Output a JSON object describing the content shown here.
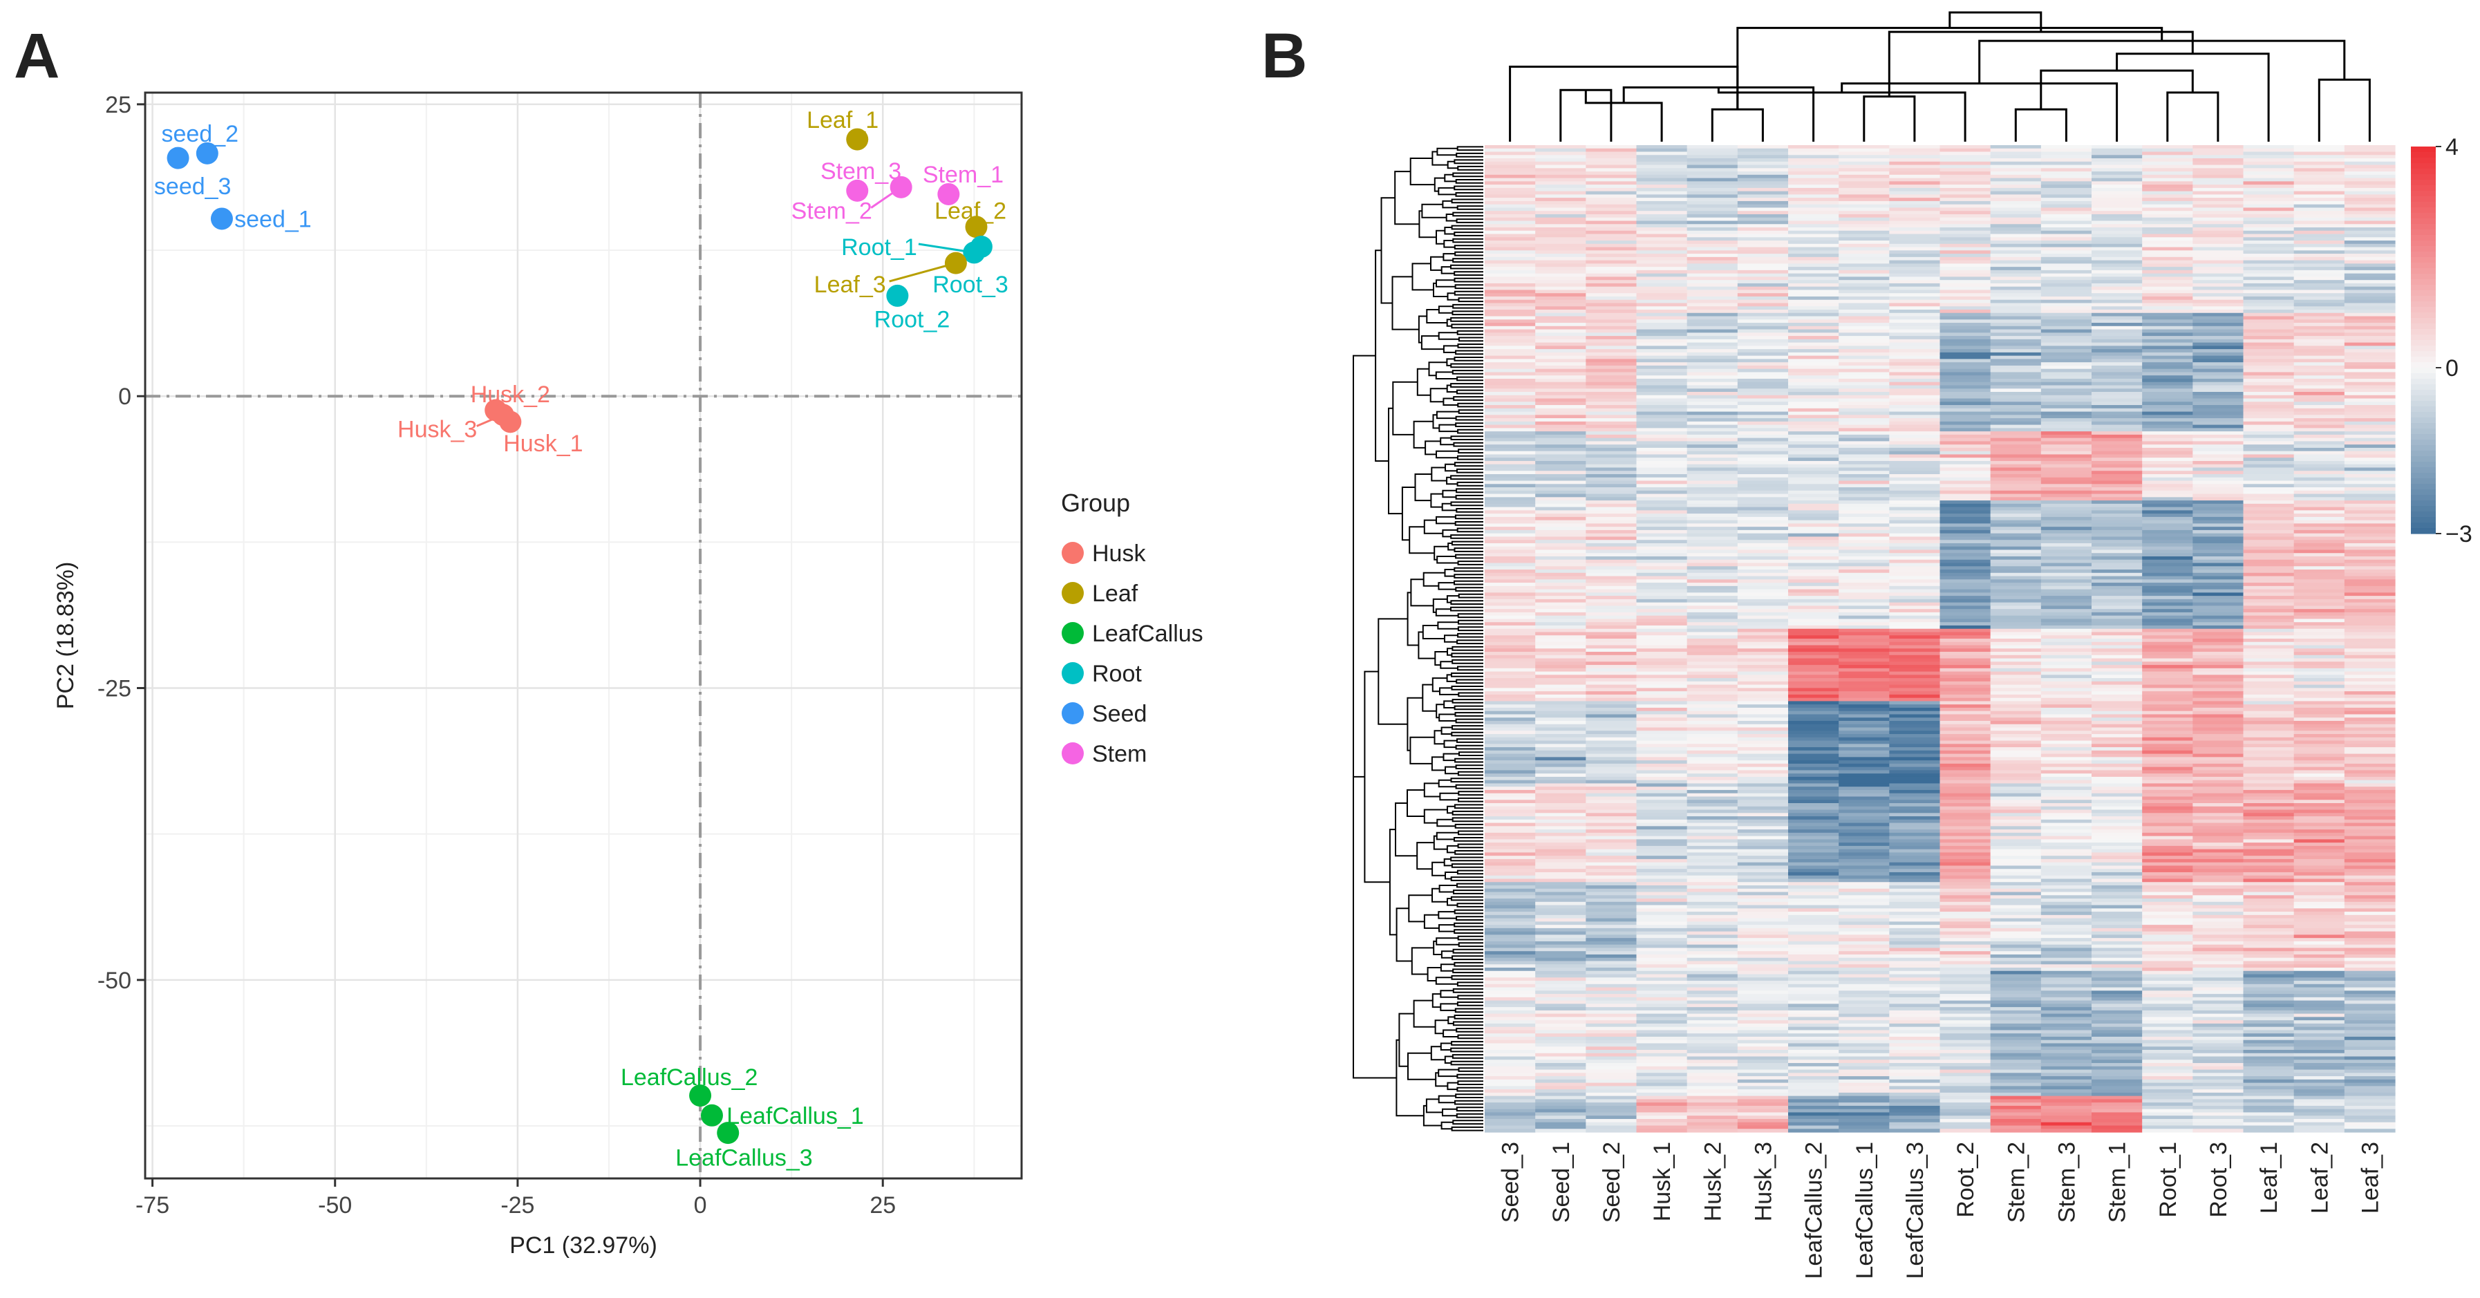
{
  "panels": {
    "a_letter": "A",
    "b_letter": "B"
  },
  "chart_data": [
    {
      "type": "scatter",
      "xlabel": "PC1 (32.97%)",
      "ylabel": "PC2 (18.83%)",
      "xlim": [
        -76,
        44
      ],
      "ylim": [
        -67,
        26
      ],
      "xticks": [
        -75,
        -50,
        -25,
        0,
        25
      ],
      "yticks": [
        25,
        0,
        -25,
        -50
      ],
      "grid": true,
      "reference_lines": {
        "x": 0,
        "y": 0,
        "style": "dashdot"
      },
      "legend": {
        "title": "Group",
        "position": "right",
        "entries": [
          {
            "label": "Husk",
            "color": "#F8766D"
          },
          {
            "label": "Leaf",
            "color": "#B79F00"
          },
          {
            "label": "LeafCallus",
            "color": "#00BA38"
          },
          {
            "label": "Root",
            "color": "#00BFC4"
          },
          {
            "label": "Seed",
            "color": "#3896F5"
          },
          {
            "label": "Stem",
            "color": "#F564E3"
          }
        ]
      },
      "points": [
        {
          "label": "seed_2",
          "group": "Seed",
          "x": -67.5,
          "y": 20.8,
          "lx": -68.5,
          "ly": 22.5
        },
        {
          "label": "seed_3",
          "group": "Seed",
          "x": -71.5,
          "y": 20.4,
          "lx": -69.5,
          "ly": 18.0
        },
        {
          "label": "seed_1",
          "group": "Seed",
          "x": -65.5,
          "y": 15.2,
          "lx": -58.5,
          "ly": 15.2
        },
        {
          "label": "Husk_2",
          "group": "Husk",
          "x": -28.0,
          "y": -1.2,
          "lx": -26.0,
          "ly": 0.2
        },
        {
          "label": "Husk_3",
          "group": "Husk",
          "x": -27.0,
          "y": -1.6,
          "lx": -36.0,
          "ly": -2.8
        },
        {
          "label": "Husk_1",
          "group": "Husk",
          "x": -26.0,
          "y": -2.2,
          "lx": -21.5,
          "ly": -4.0
        },
        {
          "label": "Leaf_1",
          "group": "Leaf",
          "x": 21.5,
          "y": 22.0,
          "lx": 19.5,
          "ly": 23.7
        },
        {
          "label": "Stem_3",
          "group": "Stem",
          "x": 21.5,
          "y": 17.6,
          "lx": 22.0,
          "ly": 19.3
        },
        {
          "label": "Stem_1",
          "group": "Stem",
          "x": 34.0,
          "y": 17.3,
          "lx": 36.0,
          "ly": 19.0
        },
        {
          "label": "Stem_2",
          "group": "Stem",
          "x": 27.5,
          "y": 17.9,
          "lx": 18.0,
          "ly": 15.9
        },
        {
          "label": "Leaf_2",
          "group": "Leaf",
          "x": 37.8,
          "y": 14.5,
          "lx": 37.0,
          "ly": 15.9
        },
        {
          "label": "Root_1",
          "group": "Root",
          "x": 37.5,
          "y": 12.3,
          "lx": 24.5,
          "ly": 12.8
        },
        {
          "label": "Root_3",
          "group": "Root",
          "x": 38.5,
          "y": 12.8,
          "lx": 37.0,
          "ly": 9.6
        },
        {
          "label": "Leaf_3",
          "group": "Leaf",
          "x": 35.0,
          "y": 11.4,
          "lx": 20.5,
          "ly": 9.6
        },
        {
          "label": "Root_2",
          "group": "Root",
          "x": 27.0,
          "y": 8.6,
          "lx": 29.0,
          "ly": 6.6
        },
        {
          "label": "LeafCallus_2",
          "group": "LeafCallus",
          "x": 0.0,
          "y": -59.9,
          "lx": -1.5,
          "ly": -58.3
        },
        {
          "label": "LeafCallus_1",
          "group": "LeafCallus",
          "x": 1.6,
          "y": -61.6,
          "lx": 13.0,
          "ly": -61.6
        },
        {
          "label": "LeafCallus_3",
          "group": "LeafCallus",
          "x": 3.8,
          "y": -63.1,
          "lx": 6.0,
          "ly": -65.2
        }
      ]
    },
    {
      "type": "heatmap",
      "columns": [
        "Seed_3",
        "Seed_1",
        "Seed_2",
        "Husk_1",
        "Husk_2",
        "Husk_3",
        "LeafCallus_2",
        "LeafCallus_1",
        "LeafCallus_3",
        "Root_2",
        "Stem_2",
        "Stem_3",
        "Stem_1",
        "Root_1",
        "Root_3",
        "Leaf_1",
        "Leaf_2",
        "Leaf_3"
      ],
      "row_count": 300,
      "row_dendrogram": true,
      "column_dendrogram": {
        "merges": [
          [
            1,
            2,
            0.4
          ],
          [
            4,
            5,
            0.25
          ],
          [
            3,
            18,
            0.3
          ],
          [
            7,
            8,
            0.35
          ],
          [
            6,
            20,
            0.42
          ],
          [
            10,
            11,
            0.25
          ],
          [
            9,
            22,
            0.38
          ],
          [
            13,
            14,
            0.38
          ],
          [
            12,
            24,
            0.45
          ],
          [
            23,
            25,
            0.55
          ],
          [
            16,
            17,
            0.48
          ],
          [
            15,
            27,
            0.68
          ],
          [
            26,
            28,
            0.78
          ],
          [
            21,
            29,
            0.85
          ],
          [
            19,
            30,
            0.88
          ],
          [
            0,
            19,
            0.58
          ],
          [
            32,
            31,
            1.0
          ]
        ]
      },
      "colorbar": {
        "min": -3,
        "max": 4,
        "ticks": [
          4,
          0,
          -3
        ],
        "colors": [
          "#3B6C97",
          "#F7F7F7",
          "#EE2D33"
        ]
      }
    }
  ]
}
